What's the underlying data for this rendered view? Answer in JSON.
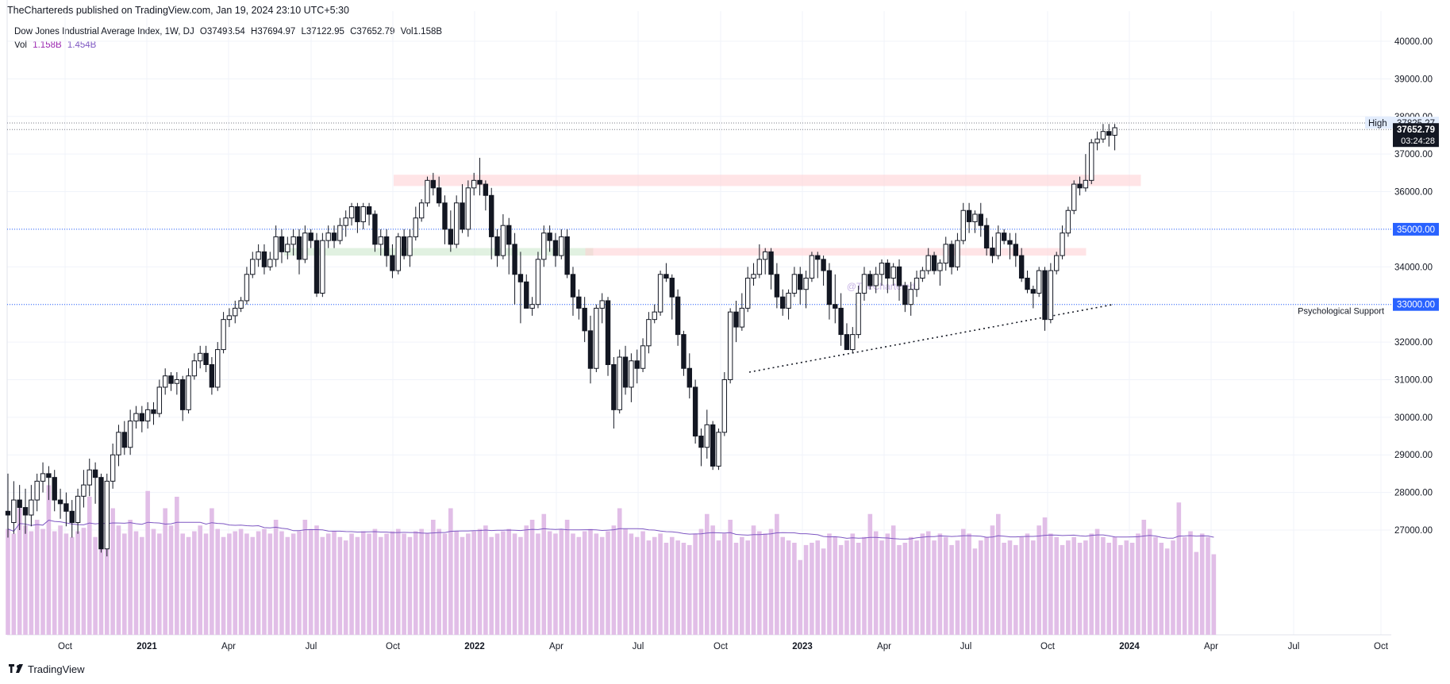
{
  "header": {
    "published": "TheChartereds published on TradingView.com, Jan 19, 2024 23:10 UTC+5:30"
  },
  "legend": {
    "title": "Dow Jones Industrial Average Index, 1W, DJ",
    "open": "O37493.54",
    "high": "H37694.97",
    "low": "L37122.95",
    "close": "C37652.79",
    "vol": "Vol1.158B",
    "vol_label": "Vol",
    "vol_value": "1.158B",
    "vol_ma": "1.454B"
  },
  "footer": {
    "brand": "TradingView"
  },
  "colors": {
    "vol_bar": "#e1bee7",
    "vol_ma": "#7e57c2",
    "level_line": "#2962ff",
    "price_badge": "#131722"
  },
  "chart_data": {
    "type": "candlestick",
    "timeframe": "1W",
    "ylim": [
      26600,
      40600
    ],
    "y_ticks": [
      27000,
      28000,
      29000,
      30000,
      31000,
      32000,
      33000,
      34000,
      35000,
      36000,
      37000,
      38000,
      39000,
      40000
    ],
    "x_ticks": [
      "Oct",
      "2021",
      "Apr",
      "Jul",
      "Oct",
      "2022",
      "Apr",
      "Jul",
      "Oct",
      "2023",
      "Apr",
      "Jul",
      "Oct",
      "2024",
      "Apr",
      "Jul",
      "Oct"
    ],
    "levels": [
      {
        "label": "35000.00",
        "value": 35000
      },
      {
        "label": "33000.00",
        "value": 33000,
        "annotation": "Psychological Support"
      }
    ],
    "high_marker": {
      "label": "High",
      "value_label": "37825.27",
      "value": 37825.27
    },
    "last_price": {
      "label": "37652.79",
      "value": 37652.79,
      "countdown": "03:24:28"
    },
    "zones": [
      {
        "color": "#ffcdd2",
        "from": "2021-10",
        "to": "2024-01",
        "low": 36150,
        "high": 36450
      },
      {
        "color": "#c8e6c9",
        "from": "2021-06",
        "to": "2022-05",
        "low": 34300,
        "high": 34500
      },
      {
        "color": "#ffcdd2",
        "from": "2022-05",
        "to": "2023-11",
        "low": 34300,
        "high": 34500
      }
    ],
    "trendline": {
      "from": {
        "date": "2022-10",
        "value": 31200
      },
      "to": {
        "date": "2023-12",
        "value": 33000
      }
    },
    "watermark": "@TheChartereds",
    "candles": [
      [
        27500,
        27400,
        28500,
        26800
      ],
      [
        27200,
        27800,
        28300,
        26900
      ],
      [
        27800,
        27600,
        28200,
        27000
      ],
      [
        27600,
        27400,
        28100,
        26900
      ],
      [
        27400,
        27800,
        28200,
        27100
      ],
      [
        27800,
        28300,
        28500,
        27500
      ],
      [
        28300,
        28500,
        28800,
        28000
      ],
      [
        28500,
        28400,
        28700,
        27800
      ],
      [
        28400,
        27800,
        28600,
        27500
      ],
      [
        27800,
        27700,
        28100,
        27300
      ],
      [
        27700,
        27500,
        28000,
        27100
      ],
      [
        27500,
        27200,
        27800,
        26800
      ],
      [
        27200,
        27900,
        28100,
        26900
      ],
      [
        27900,
        28200,
        28600,
        27600
      ],
      [
        28200,
        28600,
        28900,
        27900
      ],
      [
        28600,
        28400,
        28800,
        27700
      ],
      [
        28400,
        26500,
        28500,
        26400
      ],
      [
        26500,
        28300,
        28500,
        26300
      ],
      [
        28300,
        29000,
        29300,
        28100
      ],
      [
        29000,
        29600,
        29800,
        28700
      ],
      [
        29600,
        29200,
        29900,
        29000
      ],
      [
        29200,
        29900,
        30200,
        29000
      ],
      [
        29900,
        30100,
        30300,
        29700
      ],
      [
        30100,
        29900,
        30300,
        29600
      ],
      [
        29900,
        30200,
        30400,
        29700
      ],
      [
        30200,
        30100,
        30400,
        29800
      ],
      [
        30100,
        30800,
        31000,
        30000
      ],
      [
        30800,
        31100,
        31300,
        30600
      ],
      [
        31100,
        30900,
        31200,
        30700
      ],
      [
        30900,
        31000,
        31200,
        30600
      ],
      [
        31000,
        30200,
        31100,
        29900
      ],
      [
        30200,
        31100,
        31300,
        30100
      ],
      [
        31100,
        31500,
        31700,
        31000
      ],
      [
        31500,
        31700,
        31900,
        31300
      ],
      [
        31700,
        31400,
        31900,
        31200
      ],
      [
        31400,
        30800,
        31600,
        30600
      ],
      [
        30800,
        31800,
        32000,
        30700
      ],
      [
        31800,
        32600,
        32800,
        31700
      ],
      [
        32600,
        32700,
        32900,
        32400
      ],
      [
        32700,
        32900,
        33100,
        32500
      ],
      [
        32900,
        33100,
        33200,
        32800
      ],
      [
        33100,
        33800,
        34000,
        33000
      ],
      [
        33800,
        34200,
        34400,
        33700
      ],
      [
        34200,
        34400,
        34600,
        34000
      ],
      [
        34400,
        34000,
        34600,
        33800
      ],
      [
        34000,
        34200,
        34400,
        33900
      ],
      [
        34200,
        34800,
        35100,
        34000
      ],
      [
        34800,
        34400,
        35000,
        34100
      ],
      [
        34400,
        34600,
        34800,
        34200
      ],
      [
        34600,
        34800,
        35000,
        34300
      ],
      [
        34800,
        34200,
        35000,
        33800
      ],
      [
        34200,
        34900,
        35100,
        34100
      ],
      [
        34900,
        34700,
        35000,
        34500
      ],
      [
        34700,
        33300,
        34900,
        33200
      ],
      [
        33300,
        34700,
        34900,
        33200
      ],
      [
        34700,
        34900,
        35100,
        34500
      ],
      [
        34900,
        34700,
        35100,
        34500
      ],
      [
        34700,
        35100,
        35300,
        34600
      ],
      [
        35100,
        35300,
        35500,
        34800
      ],
      [
        35300,
        35600,
        35700,
        35100
      ],
      [
        35600,
        35200,
        35700,
        34900
      ],
      [
        35200,
        35600,
        35700,
        35000
      ],
      [
        35600,
        35400,
        35700,
        35100
      ],
      [
        35400,
        34600,
        35500,
        34400
      ],
      [
        34600,
        34800,
        35000,
        34300
      ],
      [
        34800,
        34300,
        35000,
        34000
      ],
      [
        34300,
        33900,
        34600,
        33700
      ],
      [
        33900,
        34800,
        34900,
        33800
      ],
      [
        34800,
        34300,
        35000,
        34200
      ],
      [
        34300,
        34800,
        35000,
        34000
      ],
      [
        34800,
        35300,
        35600,
        34700
      ],
      [
        35300,
        35700,
        35800,
        35200
      ],
      [
        35700,
        36300,
        36400,
        35600
      ],
      [
        36300,
        36100,
        36500,
        35900
      ],
      [
        36100,
        35700,
        36400,
        35600
      ],
      [
        35700,
        35000,
        35900,
        34600
      ],
      [
        35000,
        34600,
        35500,
        34400
      ],
      [
        34600,
        35700,
        35900,
        34500
      ],
      [
        35700,
        35000,
        36200,
        34900
      ],
      [
        35000,
        36100,
        36300,
        34800
      ],
      [
        36100,
        36300,
        36500,
        35900
      ],
      [
        36300,
        36200,
        36900,
        35900
      ],
      [
        36200,
        35900,
        36300,
        35500
      ],
      [
        35900,
        34800,
        36100,
        34200
      ],
      [
        34800,
        34300,
        35000,
        34000
      ],
      [
        34300,
        35100,
        35400,
        34200
      ],
      [
        35100,
        34600,
        35300,
        33800
      ],
      [
        34600,
        33800,
        34900,
        33000
      ],
      [
        33800,
        33600,
        34400,
        32500
      ],
      [
        33600,
        32900,
        33800,
        32900
      ],
      [
        32900,
        33000,
        33200,
        32700
      ],
      [
        33000,
        34200,
        34400,
        32900
      ],
      [
        34200,
        34900,
        35100,
        34000
      ],
      [
        34900,
        34700,
        35100,
        34400
      ],
      [
        34700,
        34300,
        34900,
        34000
      ],
      [
        34300,
        34800,
        35000,
        34200
      ],
      [
        34800,
        33800,
        35000,
        33700
      ],
      [
        33800,
        33200,
        34000,
        32700
      ],
      [
        33200,
        32900,
        33400,
        32600
      ],
      [
        32900,
        32300,
        33200,
        32000
      ],
      [
        32300,
        31300,
        32700,
        30900
      ],
      [
        31300,
        32900,
        33000,
        31200
      ],
      [
        32900,
        33100,
        33300,
        32500
      ],
      [
        33100,
        31400,
        33200,
        31100
      ],
      [
        31400,
        30200,
        31600,
        29700
      ],
      [
        30200,
        31600,
        31800,
        30100
      ],
      [
        31600,
        30800,
        31900,
        30600
      ],
      [
        30800,
        31500,
        31700,
        30400
      ],
      [
        31500,
        31300,
        31800,
        30900
      ],
      [
        31300,
        31900,
        32100,
        31200
      ],
      [
        31900,
        32600,
        32800,
        31700
      ],
      [
        32600,
        32800,
        33000,
        32500
      ],
      [
        32800,
        33800,
        33900,
        32700
      ],
      [
        33800,
        33700,
        34100,
        33600
      ],
      [
        33700,
        33200,
        33800,
        32600
      ],
      [
        33200,
        32200,
        33400,
        31900
      ],
      [
        32200,
        31300,
        32300,
        31100
      ],
      [
        31300,
        30800,
        31700,
        30500
      ],
      [
        30800,
        29500,
        31000,
        29300
      ],
      [
        29500,
        29200,
        29700,
        28700
      ],
      [
        29200,
        29800,
        30200,
        28900
      ],
      [
        29800,
        28700,
        29900,
        28600
      ],
      [
        28700,
        29600,
        29700,
        28600
      ],
      [
        29600,
        31000,
        31200,
        29500
      ],
      [
        31000,
        32800,
        32900,
        30900
      ],
      [
        32800,
        32400,
        33100,
        32000
      ],
      [
        32400,
        32900,
        33300,
        32300
      ],
      [
        32900,
        33700,
        34000,
        32800
      ],
      [
        33700,
        33800,
        34100,
        33500
      ],
      [
        33800,
        34200,
        34600,
        33700
      ],
      [
        34200,
        34400,
        34500,
        33800
      ],
      [
        34400,
        33800,
        34500,
        33400
      ],
      [
        33800,
        33200,
        34100,
        32900
      ],
      [
        33200,
        32900,
        33400,
        32700
      ],
      [
        32900,
        33300,
        33400,
        32600
      ],
      [
        33300,
        33800,
        34000,
        33200
      ],
      [
        33800,
        33400,
        34000,
        33000
      ],
      [
        33400,
        33700,
        33900,
        32900
      ],
      [
        33700,
        34300,
        34400,
        33600
      ],
      [
        34300,
        34200,
        34400,
        33700
      ],
      [
        34200,
        33900,
        34300,
        33500
      ],
      [
        33900,
        33000,
        34100,
        32600
      ],
      [
        33000,
        32900,
        33800,
        32500
      ],
      [
        32900,
        32200,
        33300,
        31900
      ],
      [
        32200,
        31800,
        32500,
        31800
      ],
      [
        31800,
        32200,
        32400,
        31700
      ],
      [
        32200,
        33300,
        33500,
        32100
      ],
      [
        33300,
        33800,
        34000,
        33100
      ],
      [
        33800,
        33500,
        33900,
        33400
      ],
      [
        33500,
        33800,
        34000,
        33300
      ],
      [
        33800,
        34100,
        34200,
        33500
      ],
      [
        34100,
        33700,
        34200,
        33300
      ],
      [
        33700,
        34000,
        34100,
        33500
      ],
      [
        34000,
        33500,
        34200,
        33100
      ],
      [
        33500,
        33000,
        33600,
        32800
      ],
      [
        33000,
        33400,
        33600,
        32700
      ],
      [
        33400,
        33700,
        33900,
        33200
      ],
      [
        33700,
        33900,
        34000,
        33600
      ],
      [
        33900,
        34300,
        34500,
        33800
      ],
      [
        34300,
        33900,
        34400,
        33800
      ],
      [
        33900,
        34100,
        34200,
        33500
      ],
      [
        34100,
        34600,
        34800,
        33900
      ],
      [
        34600,
        34000,
        34700,
        33800
      ],
      [
        34000,
        34700,
        34900,
        33900
      ],
      [
        34700,
        35500,
        35700,
        34600
      ],
      [
        35500,
        35200,
        35700,
        34900
      ],
      [
        35200,
        35400,
        35500,
        34900
      ],
      [
        35400,
        35100,
        35700,
        34800
      ],
      [
        35100,
        34500,
        35300,
        34300
      ],
      [
        34500,
        34300,
        34800,
        34100
      ],
      [
        34300,
        34900,
        35100,
        34200
      ],
      [
        34900,
        34700,
        35000,
        34600
      ],
      [
        34700,
        34600,
        34900,
        34200
      ],
      [
        34600,
        34300,
        34900,
        34000
      ],
      [
        34300,
        33700,
        34500,
        33600
      ],
      [
        33700,
        33400,
        33900,
        33300
      ],
      [
        33400,
        33300,
        33500,
        32900
      ],
      [
        33300,
        33900,
        34000,
        33200
      ],
      [
        33900,
        32600,
        34000,
        32300
      ],
      [
        32600,
        33900,
        34100,
        32500
      ],
      [
        33900,
        34300,
        34400,
        33800
      ],
      [
        34300,
        34900,
        35100,
        34200
      ],
      [
        34900,
        35500,
        35600,
        34800
      ],
      [
        35500,
        36200,
        36300,
        35400
      ],
      [
        36200,
        36100,
        36400,
        35900
      ],
      [
        36100,
        36300,
        37000,
        36000
      ],
      [
        36300,
        37300,
        37400,
        36200
      ],
      [
        37300,
        37400,
        37600,
        37100
      ],
      [
        37400,
        37600,
        37800,
        37300
      ],
      [
        37600,
        37500,
        37800,
        37200
      ],
      [
        37500,
        37700,
        37800,
        37100
      ]
    ],
    "volume": [
      0.92,
      0.88,
      1.1,
      0.95,
      0.9,
      1.0,
      0.92,
      1.3,
      0.9,
      0.95,
      0.88,
      0.85,
      0.9,
      0.93,
      1.2,
      0.85,
      1.05,
      0.9,
      1.1,
      0.95,
      0.88,
      1.0,
      0.9,
      0.85,
      1.25,
      0.92,
      0.88,
      1.1,
      0.95,
      1.2,
      0.88,
      0.85,
      0.9,
      0.95,
      0.88,
      1.1,
      0.92,
      0.85,
      0.88,
      0.9,
      0.92,
      0.88,
      0.85,
      0.9,
      0.92,
      0.88,
      1.0,
      0.9,
      0.85,
      0.88,
      0.9,
      1.0,
      0.92,
      0.95,
      0.85,
      0.88,
      0.9,
      0.85,
      0.82,
      0.88,
      0.85,
      0.9,
      0.88,
      0.92,
      0.85,
      0.88,
      0.9,
      0.92,
      0.88,
      0.85,
      0.9,
      0.92,
      0.88,
      1.0,
      0.92,
      0.88,
      1.1,
      0.9,
      0.85,
      0.88,
      0.9,
      0.92,
      0.95,
      0.85,
      0.88,
      0.9,
      0.92,
      0.88,
      0.85,
      0.95,
      1.0,
      0.88,
      1.05,
      0.9,
      0.88,
      0.92,
      1.0,
      0.88,
      0.85,
      0.9,
      0.92,
      0.88,
      0.85,
      0.9,
      0.95,
      1.1,
      0.92,
      0.88,
      0.85,
      0.9,
      0.82,
      0.85,
      0.88,
      0.8,
      0.85,
      0.82,
      0.8,
      0.78,
      0.88,
      0.92,
      1.05,
      0.95,
      0.82,
      0.88,
      1.0,
      0.8,
      0.85,
      0.82,
      0.95,
      0.9,
      0.88,
      0.92,
      1.05,
      0.85,
      0.82,
      0.8,
      0.65,
      0.78,
      0.8,
      0.82,
      0.75,
      0.88,
      0.85,
      0.78,
      0.82,
      0.88,
      0.8,
      0.85,
      1.05,
      0.9,
      0.82,
      0.88,
      0.95,
      0.78,
      0.8,
      0.85,
      0.82,
      0.88,
      0.9,
      0.82,
      0.88,
      0.85,
      0.78,
      0.82,
      0.92,
      0.88,
      0.75,
      0.82,
      0.85,
      0.95,
      1.05,
      0.8,
      0.82,
      0.78,
      0.85,
      0.88,
      0.82,
      0.95,
      1.02,
      0.88,
      0.85,
      0.78,
      0.82,
      0.85,
      0.8,
      0.82,
      0.88,
      0.92,
      0.85,
      0.8,
      0.85,
      0.78,
      0.82,
      0.8,
      0.88,
      1.0,
      0.92,
      0.85,
      0.8,
      0.75,
      0.82,
      1.15,
      0.85,
      0.9,
      0.72,
      0.88,
      0.85,
      0.7
    ]
  }
}
